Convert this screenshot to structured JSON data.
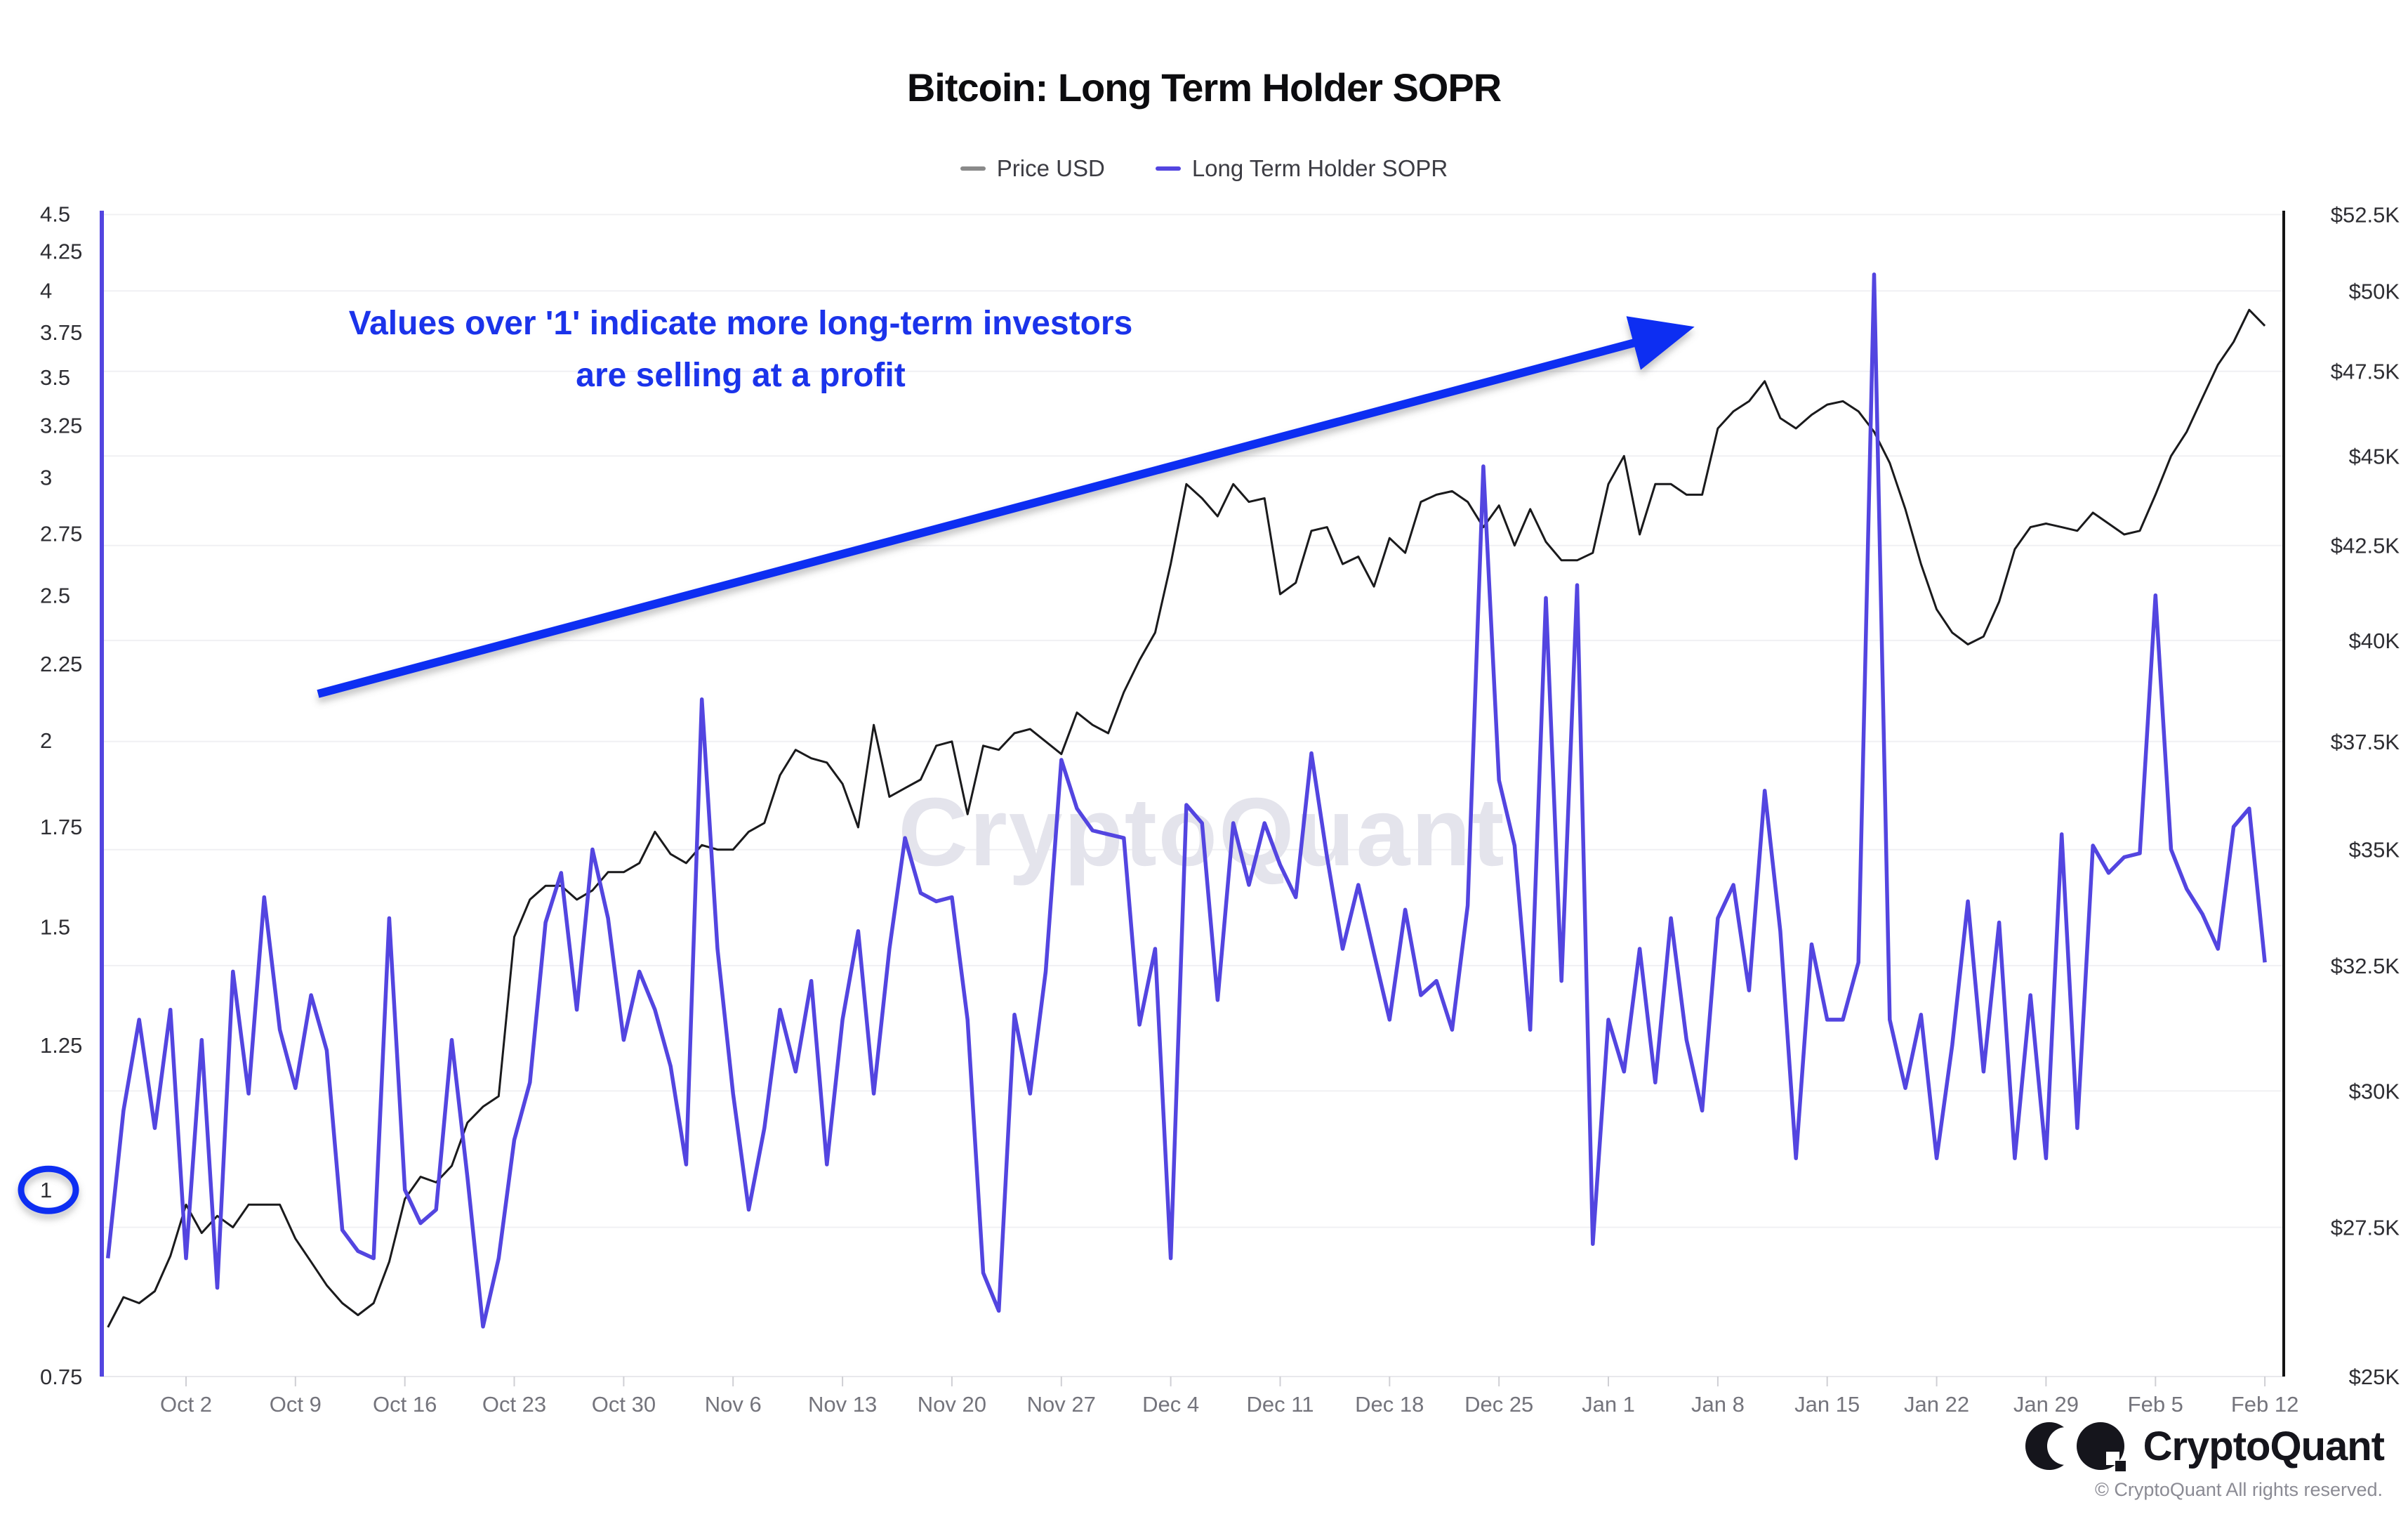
{
  "title": "Bitcoin: Long Term Holder SOPR",
  "legend": [
    {
      "label": "Price USD",
      "color": "#8a8a8a"
    },
    {
      "label": "Long Term Holder SOPR",
      "color": "#5345e0"
    }
  ],
  "annotation": {
    "line1": "Values over '1' indicate more long-term investors",
    "line2": "are selling at a profit"
  },
  "watermark": "CryptoQuant",
  "footer": {
    "brand": "CryptoQuant",
    "copyright": "© CryptoQuant All rights reserved."
  },
  "colors": {
    "accent": "#0d2ff2",
    "annotation_text": "#1b33ea",
    "sopr_line": "#5345e0",
    "price_line": "#1a1a1c",
    "gridline": "#f0f0f3",
    "axis_baseline": "#e8e8ec",
    "tick_mark": "#cfcfd4",
    "watermark": "#e4e4ec",
    "left_axis_label": "#2e2e33",
    "right_axis_label": "#2e2e33",
    "x_axis_label": "#74747c",
    "right_spine": "#141414"
  },
  "chart_data": {
    "type": "line",
    "title": "Bitcoin: Long Term Holder SOPR",
    "grid": "horizontal-only",
    "legend_position": "top-center",
    "baseline_annotation": {
      "value": 1,
      "meaning": "SOPR profit/loss threshold",
      "circled_tick": "1"
    },
    "x_tick_labels": [
      "Oct 2",
      "Oct 9",
      "Oct 16",
      "Oct 23",
      "Oct 30",
      "Nov 6",
      "Nov 13",
      "Nov 20",
      "Nov 27",
      "Dec 4",
      "Dec 11",
      "Dec 18",
      "Dec 25",
      "Jan 1",
      "Jan 8",
      "Jan 15",
      "Jan 22",
      "Jan 29",
      "Feb 5",
      "Feb 12"
    ],
    "left_axis": {
      "series": "Long Term Holder SOPR",
      "scale": "log",
      "range": [
        0.75,
        4.5
      ],
      "ticks": [
        0.75,
        1,
        1.25,
        1.5,
        1.75,
        2,
        2.25,
        2.5,
        2.75,
        3,
        3.25,
        3.5,
        3.75,
        4,
        4.25,
        4.5
      ]
    },
    "right_axis": {
      "series": "Price USD",
      "scale": "log",
      "range_k_usd": [
        25,
        52.5
      ],
      "ticks_k": [
        25,
        27.5,
        30,
        32.5,
        35,
        37.5,
        40,
        42.5,
        45,
        47.5,
        50,
        52.5
      ]
    },
    "dates": [
      "Sep 27",
      "Sep 28",
      "Sep 29",
      "Sep 30",
      "Oct 1",
      "Oct 2",
      "Oct 3",
      "Oct 4",
      "Oct 5",
      "Oct 6",
      "Oct 7",
      "Oct 8",
      "Oct 9",
      "Oct 10",
      "Oct 11",
      "Oct 12",
      "Oct 13",
      "Oct 14",
      "Oct 15",
      "Oct 16",
      "Oct 17",
      "Oct 18",
      "Oct 19",
      "Oct 20",
      "Oct 21",
      "Oct 22",
      "Oct 23",
      "Oct 24",
      "Oct 25",
      "Oct 26",
      "Oct 27",
      "Oct 28",
      "Oct 29",
      "Oct 30",
      "Oct 31",
      "Nov 1",
      "Nov 2",
      "Nov 3",
      "Nov 4",
      "Nov 5",
      "Nov 6",
      "Nov 7",
      "Nov 8",
      "Nov 9",
      "Nov 10",
      "Nov 11",
      "Nov 12",
      "Nov 13",
      "Nov 14",
      "Nov 15",
      "Nov 16",
      "Nov 17",
      "Nov 18",
      "Nov 19",
      "Nov 20",
      "Nov 21",
      "Nov 22",
      "Nov 23",
      "Nov 24",
      "Nov 25",
      "Nov 26",
      "Nov 27",
      "Nov 28",
      "Nov 29",
      "Nov 30",
      "Dec 1",
      "Dec 2",
      "Dec 3",
      "Dec 4",
      "Dec 5",
      "Dec 6",
      "Dec 7",
      "Dec 8",
      "Dec 9",
      "Dec 10",
      "Dec 11",
      "Dec 12",
      "Dec 13",
      "Dec 14",
      "Dec 15",
      "Dec 16",
      "Dec 17",
      "Dec 18",
      "Dec 19",
      "Dec 20",
      "Dec 21",
      "Dec 22",
      "Dec 23",
      "Dec 24",
      "Dec 25",
      "Dec 26",
      "Dec 27",
      "Dec 28",
      "Dec 29",
      "Dec 30",
      "Dec 31",
      "Jan 1",
      "Jan 2",
      "Jan 3",
      "Jan 4",
      "Jan 5",
      "Jan 6",
      "Jan 7",
      "Jan 8",
      "Jan 9",
      "Jan 10",
      "Jan 11",
      "Jan 12",
      "Jan 13",
      "Jan 14",
      "Jan 15",
      "Jan 16",
      "Jan 17",
      "Jan 18",
      "Jan 19",
      "Jan 20",
      "Jan 21",
      "Jan 22",
      "Jan 23",
      "Jan 24",
      "Jan 25",
      "Jan 26",
      "Jan 27",
      "Jan 28",
      "Jan 29",
      "Jan 30",
      "Jan 31",
      "Feb 1",
      "Feb 2",
      "Feb 3",
      "Feb 4",
      "Feb 5",
      "Feb 6",
      "Feb 7",
      "Feb 8",
      "Feb 9",
      "Feb 10",
      "Feb 11",
      "Feb 12"
    ],
    "series": [
      {
        "name": "Price USD",
        "axis": "right",
        "unit": "USD (thousands)",
        "values": [
          25.8,
          26.3,
          26.2,
          26.4,
          27.0,
          27.9,
          27.4,
          27.7,
          27.5,
          27.9,
          27.9,
          27.9,
          27.3,
          26.9,
          26.5,
          26.2,
          26.0,
          26.2,
          26.9,
          28.0,
          28.4,
          28.3,
          28.6,
          29.4,
          29.7,
          29.9,
          33.1,
          33.9,
          34.2,
          34.2,
          33.9,
          34.1,
          34.5,
          34.5,
          34.7,
          35.4,
          34.9,
          34.7,
          35.1,
          35.0,
          35.0,
          35.4,
          35.6,
          36.7,
          37.3,
          37.1,
          37.0,
          36.5,
          35.5,
          37.9,
          36.2,
          36.4,
          36.6,
          37.4,
          37.5,
          35.8,
          37.4,
          37.3,
          37.7,
          37.8,
          37.5,
          37.2,
          38.2,
          37.9,
          37.7,
          38.7,
          39.5,
          40.2,
          42.0,
          44.2,
          43.8,
          43.3,
          44.2,
          43.7,
          43.8,
          41.2,
          41.5,
          42.9,
          43.0,
          42.0,
          42.2,
          41.4,
          42.7,
          42.3,
          43.7,
          43.9,
          44.0,
          43.7,
          43.0,
          43.6,
          42.5,
          43.5,
          42.6,
          42.1,
          42.1,
          42.3,
          44.2,
          45.0,
          42.8,
          44.2,
          44.2,
          43.9,
          43.9,
          45.8,
          46.3,
          46.6,
          47.2,
          46.1,
          45.8,
          46.2,
          46.5,
          46.6,
          46.3,
          45.7,
          44.8,
          43.5,
          42.0,
          40.8,
          40.2,
          39.9,
          40.1,
          41.0,
          42.4,
          43.0,
          43.1,
          43.0,
          42.9,
          43.4,
          43.1,
          42.8,
          42.9,
          43.9,
          45.0,
          45.7,
          46.7,
          47.7,
          48.4,
          49.4,
          48.9
        ]
      },
      {
        "name": "Long Term Holder SOPR",
        "axis": "left",
        "unit": "ratio",
        "values": [
          0.9,
          1.13,
          1.3,
          1.1,
          1.32,
          0.9,
          1.26,
          0.86,
          1.4,
          1.16,
          1.57,
          1.28,
          1.17,
          1.35,
          1.24,
          0.94,
          0.91,
          0.9,
          1.52,
          1.0,
          0.95,
          0.97,
          1.26,
          1.02,
          0.81,
          0.9,
          1.08,
          1.18,
          1.51,
          1.63,
          1.32,
          1.69,
          1.52,
          1.26,
          1.4,
          1.32,
          1.21,
          1.04,
          2.13,
          1.45,
          1.16,
          0.97,
          1.1,
          1.32,
          1.2,
          1.38,
          1.04,
          1.3,
          1.49,
          1.16,
          1.45,
          1.72,
          1.58,
          1.56,
          1.57,
          1.3,
          0.88,
          0.83,
          1.31,
          1.16,
          1.4,
          1.94,
          1.8,
          1.74,
          1.73,
          1.72,
          1.29,
          1.45,
          0.9,
          1.81,
          1.76,
          1.34,
          1.76,
          1.6,
          1.76,
          1.65,
          1.57,
          1.96,
          1.67,
          1.45,
          1.6,
          1.44,
          1.3,
          1.54,
          1.35,
          1.38,
          1.28,
          1.55,
          3.05,
          1.88,
          1.7,
          1.28,
          2.49,
          1.38,
          2.54,
          0.92,
          1.3,
          1.2,
          1.45,
          1.18,
          1.52,
          1.26,
          1.13,
          1.52,
          1.6,
          1.36,
          1.85,
          1.49,
          1.05,
          1.46,
          1.3,
          1.3,
          1.42,
          4.1,
          1.3,
          1.17,
          1.31,
          1.05,
          1.25,
          1.56,
          1.2,
          1.51,
          1.05,
          1.35,
          1.05,
          1.73,
          1.1,
          1.7,
          1.63,
          1.67,
          1.68,
          2.5,
          1.69,
          1.59,
          1.53,
          1.45,
          1.75,
          1.8,
          1.42
        ]
      }
    ]
  }
}
